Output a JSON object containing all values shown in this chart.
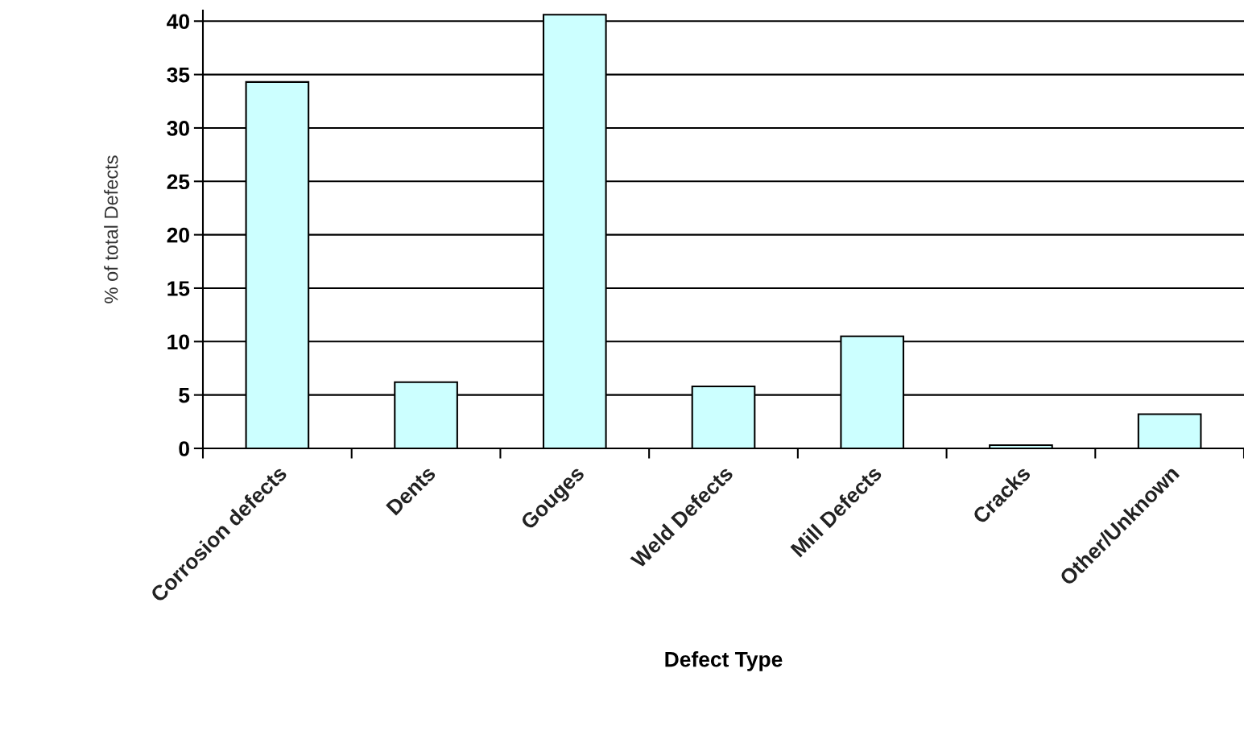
{
  "chart_data": {
    "type": "bar",
    "xlabel": "Defect Type",
    "ylabel": "% of total Defects",
    "categories": [
      "Corrosion defects",
      "Dents",
      "Gouges",
      "Weld Defects",
      "Mill Defects",
      "Cracks",
      "Other/Unknown"
    ],
    "values": [
      34.3,
      6.2,
      40.6,
      5.8,
      10.5,
      0.3,
      3.2
    ],
    "color": "#ccffff",
    "ylim": [
      0,
      41
    ],
    "yticks": [
      0,
      5,
      10,
      15,
      20,
      25,
      30,
      35,
      40
    ],
    "grid": "y"
  }
}
